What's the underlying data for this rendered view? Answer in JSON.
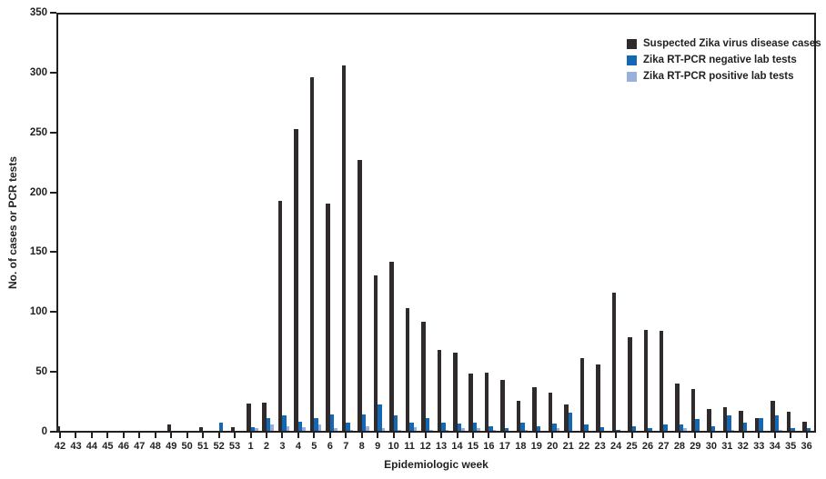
{
  "chart_data": {
    "type": "bar",
    "xlabel": "Epidemiologic week",
    "ylabel": "No. of cases or PCR tests",
    "ylim": [
      0,
      350
    ],
    "yticks": [
      0,
      50,
      100,
      150,
      200,
      250,
      300,
      350
    ],
    "grid": false,
    "legend_position": "top-right-inside",
    "categories": [
      "42",
      "43",
      "44",
      "45",
      "46",
      "47",
      "48",
      "49",
      "50",
      "51",
      "52",
      "53",
      "1",
      "2",
      "3",
      "4",
      "5",
      "6",
      "7",
      "8",
      "9",
      "10",
      "11",
      "12",
      "13",
      "14",
      "15",
      "16",
      "17",
      "18",
      "19",
      "20",
      "21",
      "22",
      "23",
      "24",
      "25",
      "26",
      "27",
      "28",
      "29",
      "30",
      "31",
      "32",
      "33",
      "34",
      "35",
      "36"
    ],
    "series": [
      {
        "name": "Suspected Zika virus disease cases",
        "color": "#2f2b2c",
        "values": [
          4,
          0,
          0,
          0,
          0,
          0,
          0,
          5,
          0,
          3,
          0,
          3,
          23,
          24,
          193,
          254,
          297,
          191,
          307,
          228,
          131,
          142,
          103,
          92,
          68,
          66,
          48,
          49,
          43,
          25,
          37,
          32,
          22,
          61,
          56,
          116,
          79,
          85,
          84,
          40,
          35,
          18,
          20,
          17,
          11,
          25,
          16,
          8
        ]
      },
      {
        "name": "Zika RT-PCR negative lab tests",
        "color": "#1468b3",
        "values": [
          0,
          0,
          0,
          0,
          0,
          0,
          0,
          0,
          0,
          0,
          7,
          0,
          3,
          11,
          13,
          8,
          11,
          14,
          7,
          14,
          22,
          13,
          7,
          11,
          7,
          6,
          7,
          4,
          2,
          7,
          4,
          6,
          15,
          5,
          3,
          1,
          4,
          2,
          5,
          5,
          10,
          4,
          13,
          7,
          11,
          13,
          2,
          2
        ]
      },
      {
        "name": "Zika RT-PCR positive lab tests",
        "color": "#97b1dc",
        "values": [
          0,
          0,
          0,
          0,
          0,
          0,
          0,
          0,
          0,
          0,
          0,
          0,
          2,
          5,
          4,
          3,
          5,
          2,
          1,
          4,
          2,
          1,
          3,
          1,
          1,
          2,
          2,
          1,
          0,
          1,
          0,
          2,
          0,
          0,
          0,
          0,
          0,
          0,
          0,
          2,
          0,
          0,
          1,
          0,
          0,
          1,
          0,
          0
        ]
      }
    ],
    "axis_color": "#231f20"
  }
}
